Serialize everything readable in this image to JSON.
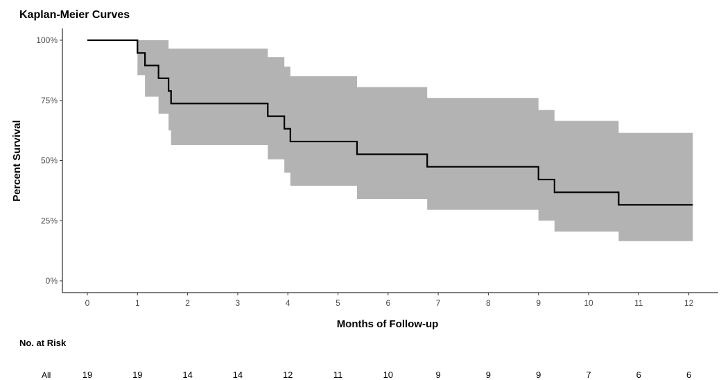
{
  "chart_data": {
    "type": "line",
    "title": "Kaplan-Meier Curves",
    "xlabel": "Months of Follow-up",
    "ylabel": "Percent Survival",
    "xlim": [
      0,
      12
    ],
    "ylim": [
      0,
      1
    ],
    "x_ticks": [
      0,
      1,
      2,
      3,
      4,
      5,
      6,
      7,
      8,
      9,
      10,
      11,
      12
    ],
    "y_ticks": [
      0,
      0.25,
      0.5,
      0.75,
      1.0
    ],
    "y_tick_labels": [
      "0%",
      "25%",
      "50%",
      "75%",
      "100%"
    ],
    "grid": false,
    "colors": {
      "curve": "#000000",
      "band": "#b3b3b3"
    },
    "survival_steps": [
      {
        "time": 0.0,
        "surv": 1.0,
        "lower": 1.0,
        "upper": 1.0
      },
      {
        "time": 1.0,
        "surv": 0.947,
        "lower": 0.855,
        "upper": 1.0
      },
      {
        "time": 1.15,
        "surv": 0.895,
        "lower": 0.765,
        "upper": 1.0
      },
      {
        "time": 1.42,
        "surv": 0.842,
        "lower": 0.695,
        "upper": 1.0
      },
      {
        "time": 1.62,
        "surv": 0.789,
        "lower": 0.625,
        "upper": 0.965
      },
      {
        "time": 1.67,
        "surv": 0.737,
        "lower": 0.565,
        "upper": 0.965
      },
      {
        "time": 3.6,
        "surv": 0.684,
        "lower": 0.505,
        "upper": 0.93
      },
      {
        "time": 3.93,
        "surv": 0.632,
        "lower": 0.45,
        "upper": 0.89
      },
      {
        "time": 4.05,
        "surv": 0.579,
        "lower": 0.395,
        "upper": 0.85
      },
      {
        "time": 5.38,
        "surv": 0.526,
        "lower": 0.34,
        "upper": 0.805
      },
      {
        "time": 6.78,
        "surv": 0.474,
        "lower": 0.295,
        "upper": 0.76
      },
      {
        "time": 9.0,
        "surv": 0.421,
        "lower": 0.25,
        "upper": 0.71
      },
      {
        "time": 9.32,
        "surv": 0.368,
        "lower": 0.205,
        "upper": 0.665
      },
      {
        "time": 10.6,
        "surv": 0.316,
        "lower": 0.165,
        "upper": 0.615
      }
    ],
    "x_end": 12.08
  },
  "risk_table": {
    "title": "No. at Risk",
    "strata_label": "All",
    "values": [
      "19",
      "19",
      "14",
      "14",
      "12",
      "11",
      "10",
      "9",
      "9",
      "9",
      "7",
      "6",
      "6"
    ]
  }
}
